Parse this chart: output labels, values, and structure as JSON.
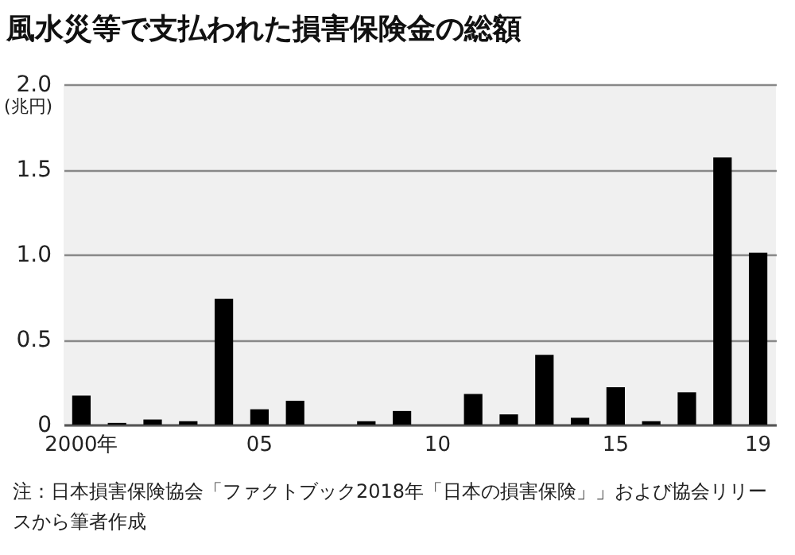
{
  "chart_data": {
    "type": "bar",
    "title": "風水災等で支払われた損害保険金の総額",
    "ylabel": "(兆円)",
    "categories": [
      "2000年",
      null,
      null,
      null,
      null,
      "05",
      null,
      null,
      null,
      null,
      "10",
      null,
      null,
      null,
      null,
      "15",
      null,
      null,
      null,
      "19"
    ],
    "values": [
      0.17,
      0.01,
      0.03,
      0.02,
      0.74,
      0.09,
      0.14,
      null,
      0.02,
      0.08,
      null,
      0.18,
      0.06,
      0.41,
      0.04,
      0.22,
      0.02,
      0.19,
      1.57,
      1.01
    ],
    "color": "#000000",
    "ylim": [
      0,
      2
    ],
    "yticks": [
      0,
      0.5,
      {
        "value": 1,
        "label": "1.0"
      },
      1.5,
      {
        "value": 2,
        "label": "2.0"
      }
    ],
    "grid": "y",
    "annotations": [
      "注：日本損害保険協会「ファクトブック2018年「日本の損害保険」」および協会リリースから筆者作成"
    ]
  }
}
